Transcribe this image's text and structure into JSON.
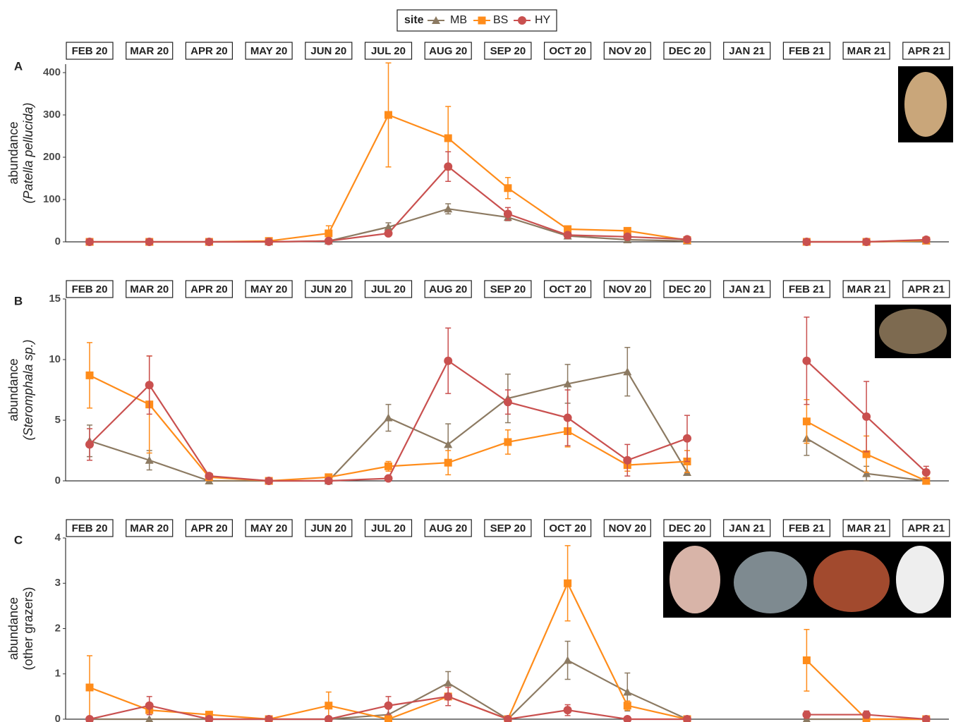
{
  "chart_data": [
    {
      "type": "line",
      "panel": "A",
      "legend_title": "site",
      "y_label": "abundance",
      "y_label_sub": "(Patella pellucida)",
      "categories": [
        "FEB 20",
        "MAR 20",
        "APR 20",
        "MAY 20",
        "JUN 20",
        "JUL 20",
        "AUG 20",
        "SEP 20",
        "OCT 20",
        "NOV 20",
        "DEC 20",
        "JAN 21",
        "FEB 21",
        "MAR 21",
        "APR 21"
      ],
      "ylim": [
        0,
        420
      ],
      "yticks": [
        0,
        100,
        200,
        300,
        400
      ],
      "series": [
        {
          "name": "MB",
          "color": "#8c7a62",
          "marker": "triangle",
          "values": [
            0,
            0,
            0,
            0,
            2,
            35,
            78,
            58,
            14,
            5,
            2,
            null,
            0,
            0,
            2
          ],
          "errors": [
            0,
            0,
            0,
            0,
            0,
            10,
            12,
            8,
            3,
            0,
            0,
            null,
            0,
            0,
            0
          ]
        },
        {
          "name": "BS",
          "color": "#ff8c1a",
          "marker": "square",
          "values": [
            0,
            0,
            0,
            2,
            20,
            300,
            245,
            127,
            30,
            26,
            4,
            null,
            0,
            0,
            3
          ],
          "errors": [
            0,
            0,
            0,
            0,
            18,
            123,
            75,
            25,
            5,
            5,
            0,
            null,
            0,
            0,
            0
          ]
        },
        {
          "name": "HY",
          "color": "#c9504f",
          "marker": "circle",
          "values": [
            0,
            0,
            0,
            0,
            2,
            20,
            178,
            66,
            16,
            12,
            6,
            null,
            0,
            0,
            5
          ],
          "errors": [
            0,
            0,
            0,
            0,
            0,
            5,
            35,
            15,
            3,
            3,
            0,
            null,
            0,
            0,
            0
          ]
        }
      ]
    },
    {
      "type": "line",
      "panel": "B",
      "y_label": "abundance",
      "y_label_sub": "(Steromphala sp.)",
      "categories": [
        "FEB 20",
        "MAR 20",
        "APR 20",
        "MAY 20",
        "JUN 20",
        "JUL 20",
        "AUG 20",
        "SEP 20",
        "OCT 20",
        "NOV 20",
        "DEC 20",
        "JAN 21",
        "FEB 21",
        "MAR 21",
        "APR 21"
      ],
      "ylim": [
        0,
        15
      ],
      "yticks": [
        0,
        5,
        10,
        15
      ],
      "series": [
        {
          "name": "MB",
          "color": "#8c7a62",
          "marker": "triangle",
          "values": [
            3.3,
            1.7,
            0,
            0,
            0,
            5.2,
            3.0,
            6.8,
            8.0,
            9.0,
            0.7,
            null,
            3.5,
            0.6,
            0
          ],
          "errors": [
            1.3,
            0.8,
            0,
            0,
            0,
            1.1,
            1.7,
            2.0,
            1.6,
            2.0,
            0,
            null,
            1.4,
            0.6,
            0
          ]
        },
        {
          "name": "BS",
          "color": "#ff8c1a",
          "marker": "square",
          "values": [
            8.7,
            6.3,
            0.3,
            0,
            0.3,
            1.2,
            1.5,
            3.2,
            4.1,
            1.3,
            1.6,
            null,
            4.9,
            2.2,
            0
          ],
          "errors": [
            2.7,
            4.0,
            0,
            0,
            0,
            0.4,
            1.0,
            1.0,
            1.3,
            0.5,
            0.9,
            null,
            1.8,
            1.5,
            0
          ]
        },
        {
          "name": "HY",
          "color": "#c9504f",
          "marker": "circle",
          "values": [
            3.0,
            7.9,
            0.4,
            0,
            0,
            0.2,
            9.9,
            6.5,
            5.2,
            1.7,
            3.5,
            null,
            9.9,
            5.3,
            0.7
          ],
          "errors": [
            1.3,
            2.4,
            0,
            0,
            0,
            0,
            2.7,
            1.0,
            2.3,
            1.3,
            1.9,
            null,
            3.6,
            2.9,
            0.5
          ]
        }
      ]
    },
    {
      "type": "line",
      "panel": "C",
      "y_label": "abundance",
      "y_label_sub": "(other grazers)",
      "categories": [
        "FEB 20",
        "MAR 20",
        "APR 20",
        "MAY 20",
        "JUN 20",
        "JUL 20",
        "AUG 20",
        "SEP 20",
        "OCT 20",
        "NOV 20",
        "DEC 20",
        "JAN 21",
        "FEB 21",
        "MAR 21",
        "APR 21"
      ],
      "ylim": [
        0,
        4
      ],
      "yticks": [
        0,
        1,
        2,
        3,
        4
      ],
      "series": [
        {
          "name": "MB",
          "color": "#8c7a62",
          "marker": "triangle",
          "values": [
            0,
            0,
            0,
            0,
            0,
            0.1,
            0.8,
            0,
            1.3,
            0.6,
            0,
            null,
            0,
            0,
            0
          ],
          "errors": [
            0,
            0,
            0,
            0,
            0,
            0,
            0.25,
            0,
            0.42,
            0.42,
            0,
            null,
            0,
            0,
            0
          ]
        },
        {
          "name": "BS",
          "color": "#ff8c1a",
          "marker": "square",
          "values": [
            0.7,
            0.2,
            0.1,
            0,
            0.3,
            0,
            0.5,
            0,
            3.0,
            0.3,
            0,
            null,
            1.3,
            0,
            0
          ],
          "errors": [
            0.7,
            0,
            0,
            0,
            0.3,
            0,
            0,
            0,
            0.83,
            0.1,
            0,
            null,
            0.68,
            0,
            0
          ]
        },
        {
          "name": "HY",
          "color": "#c9504f",
          "marker": "circle",
          "values": [
            0,
            0.3,
            0,
            0,
            0,
            0.3,
            0.5,
            0,
            0.2,
            0,
            0,
            null,
            0.1,
            0.1,
            0
          ],
          "errors": [
            0,
            0.2,
            0,
            0,
            0,
            0.2,
            0.2,
            0,
            0.12,
            0,
            0,
            null,
            0.08,
            0.08,
            0
          ]
        }
      ]
    }
  ]
}
